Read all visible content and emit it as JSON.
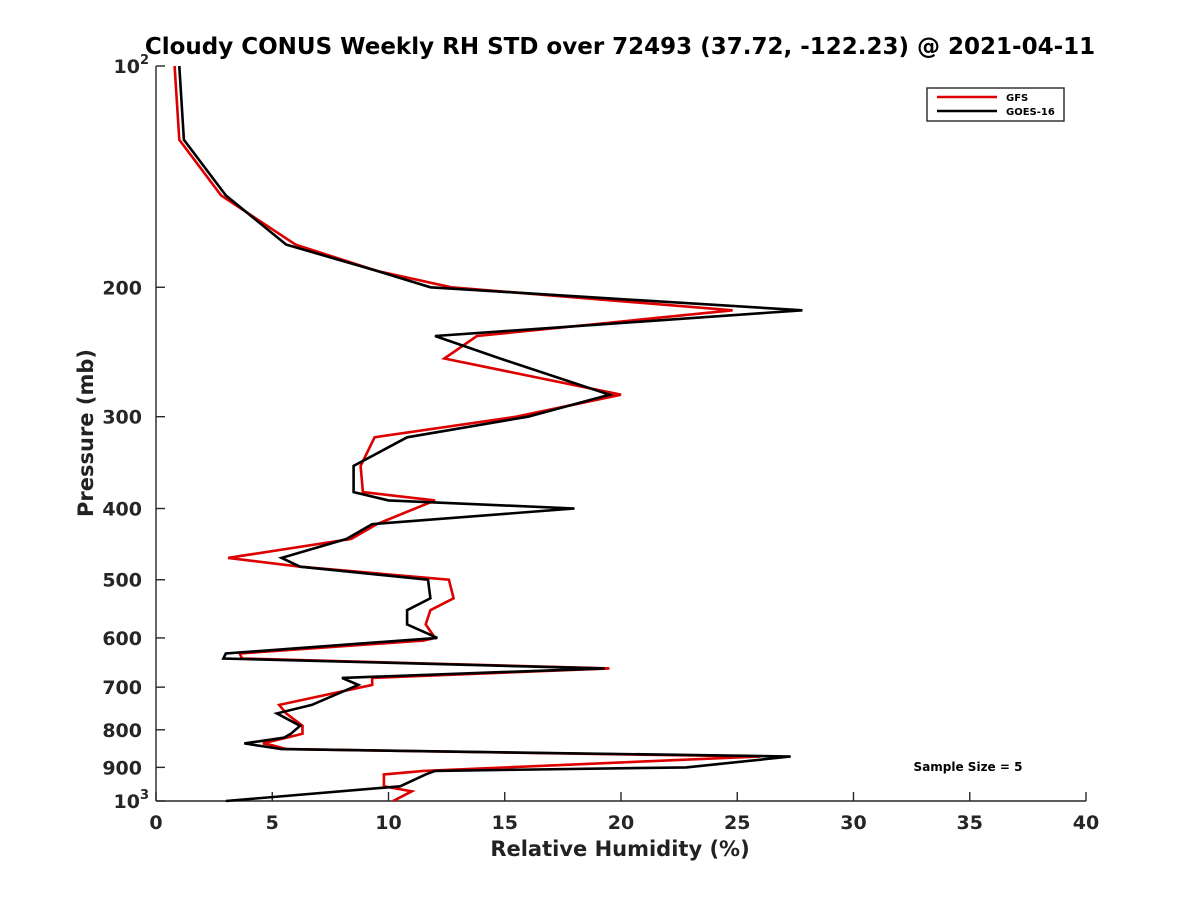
{
  "chart_data": {
    "type": "line",
    "title": "Cloudy CONUS Weekly RH STD over 72493 (37.72, -122.23) @ 2021-04-11",
    "xlabel": "Relative Humidity (%)",
    "ylabel": "Pressure (mb)",
    "xlim": [
      0,
      40
    ],
    "ylim": [
      100,
      1000
    ],
    "y_scale": "log",
    "y_reversed": true,
    "x_ticks": [
      "0",
      "5",
      "10",
      "15",
      "20",
      "25",
      "30",
      "35",
      "40"
    ],
    "y_ticks": [
      {
        "value": 100,
        "label": "10",
        "exp": "2"
      },
      {
        "value": 200,
        "label": "200"
      },
      {
        "value": 300,
        "label": "300"
      },
      {
        "value": 400,
        "label": "400"
      },
      {
        "value": 500,
        "label": "500"
      },
      {
        "value": 600,
        "label": "600"
      },
      {
        "value": 700,
        "label": "700"
      },
      {
        "value": 800,
        "label": "800"
      },
      {
        "value": 900,
        "label": "900"
      },
      {
        "value": 1000,
        "label": "10",
        "exp": "3"
      }
    ],
    "grid": false,
    "legend_position": "top-right",
    "annotation": "Sample Size = 5",
    "series": [
      {
        "name": "GFS",
        "color": "#dd0000",
        "points": [
          [
            0.8,
            100
          ],
          [
            1.0,
            126
          ],
          [
            2.8,
            150
          ],
          [
            6.0,
            175
          ],
          [
            9.5,
            190
          ],
          [
            12.7,
            200
          ],
          [
            24.8,
            215
          ],
          [
            13.8,
            233
          ],
          [
            12.4,
            250
          ],
          [
            20.0,
            280
          ],
          [
            15.5,
            300
          ],
          [
            9.4,
            320
          ],
          [
            8.8,
            350
          ],
          [
            8.9,
            380
          ],
          [
            12.0,
            390
          ],
          [
            9.5,
            420
          ],
          [
            8.4,
            440
          ],
          [
            3.1,
            467
          ],
          [
            6.2,
            480
          ],
          [
            12.6,
            500
          ],
          [
            12.8,
            530
          ],
          [
            11.8,
            550
          ],
          [
            11.6,
            575
          ],
          [
            12.0,
            600
          ],
          [
            11.5,
            605
          ],
          [
            3.6,
            630
          ],
          [
            3.7,
            640
          ],
          [
            19.5,
            660
          ],
          [
            9.3,
            680
          ],
          [
            9.3,
            695
          ],
          [
            5.3,
            740
          ],
          [
            5.6,
            760
          ],
          [
            6.3,
            790
          ],
          [
            6.3,
            810
          ],
          [
            5.6,
            820
          ],
          [
            4.6,
            835
          ],
          [
            5.0,
            840
          ],
          [
            5.6,
            850
          ],
          [
            26.0,
            870
          ],
          [
            11.5,
            910
          ],
          [
            9.8,
            920
          ],
          [
            9.8,
            955
          ],
          [
            11.0,
            970
          ],
          [
            10.2,
            1000
          ]
        ]
      },
      {
        "name": "GOES-16",
        "color": "#000000",
        "points": [
          [
            1.0,
            100
          ],
          [
            1.2,
            126
          ],
          [
            3.0,
            150
          ],
          [
            5.6,
            175
          ],
          [
            9.5,
            190
          ],
          [
            11.8,
            200
          ],
          [
            27.8,
            215
          ],
          [
            12.0,
            233
          ],
          [
            14.8,
            250
          ],
          [
            19.5,
            280
          ],
          [
            16.0,
            300
          ],
          [
            10.8,
            320
          ],
          [
            8.5,
            350
          ],
          [
            8.5,
            380
          ],
          [
            10.0,
            390
          ],
          [
            18.0,
            400
          ],
          [
            9.3,
            420
          ],
          [
            8.2,
            440
          ],
          [
            5.4,
            467
          ],
          [
            6.2,
            480
          ],
          [
            11.7,
            500
          ],
          [
            11.8,
            530
          ],
          [
            10.8,
            550
          ],
          [
            10.8,
            575
          ],
          [
            12.1,
            600
          ],
          [
            3.0,
            630
          ],
          [
            2.9,
            640
          ],
          [
            19.3,
            660
          ],
          [
            8.0,
            680
          ],
          [
            8.7,
            695
          ],
          [
            6.7,
            740
          ],
          [
            5.2,
            760
          ],
          [
            6.2,
            790
          ],
          [
            5.8,
            810
          ],
          [
            5.5,
            820
          ],
          [
            3.8,
            835
          ],
          [
            5.4,
            850
          ],
          [
            27.3,
            870
          ],
          [
            22.8,
            900
          ],
          [
            12.0,
            910
          ],
          [
            11.6,
            920
          ],
          [
            10.5,
            955
          ],
          [
            3.0,
            1000
          ]
        ]
      }
    ]
  }
}
